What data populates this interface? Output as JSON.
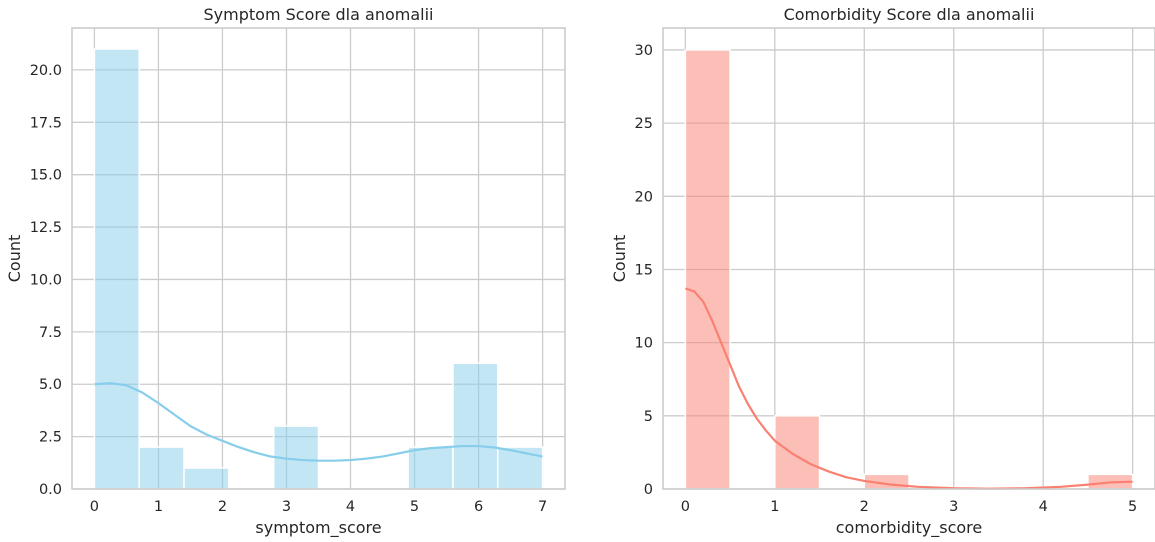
{
  "chart_data": [
    {
      "type": "bar",
      "title": "Symptom Score dla anomalii",
      "xlabel": "symptom_score",
      "ylabel": "Count",
      "xlim": [
        -0.35,
        7.35
      ],
      "ylim": [
        0,
        22
      ],
      "xticks": [
        0,
        1,
        2,
        3,
        4,
        5,
        6,
        7
      ],
      "xtick_labels": [
        "0",
        "1",
        "2",
        "3",
        "4",
        "5",
        "6",
        "7"
      ],
      "yticks": [
        0,
        2.5,
        5,
        7.5,
        10,
        12.5,
        15,
        17.5,
        20
      ],
      "ytick_labels": [
        "0.0",
        "2.5",
        "5.0",
        "7.5",
        "10.0",
        "12.5",
        "15.0",
        "17.5",
        "20.0"
      ],
      "grid": true,
      "bar_color": "#87CEEB",
      "bins": [
        {
          "x0": 0.0,
          "x1": 0.7,
          "count": 21
        },
        {
          "x0": 0.7,
          "x1": 1.4,
          "count": 2
        },
        {
          "x0": 1.4,
          "x1": 2.1,
          "count": 1
        },
        {
          "x0": 2.1,
          "x1": 2.8,
          "count": 0
        },
        {
          "x0": 2.8,
          "x1": 3.5,
          "count": 3
        },
        {
          "x0": 3.5,
          "x1": 4.2,
          "count": 0
        },
        {
          "x0": 4.2,
          "x1": 4.9,
          "count": 0
        },
        {
          "x0": 4.9,
          "x1": 5.6,
          "count": 2
        },
        {
          "x0": 5.6,
          "x1": 6.3,
          "count": 6
        },
        {
          "x0": 6.3,
          "x1": 7.0,
          "count": 2
        }
      ],
      "kde": {
        "color": "#87CEEB",
        "x": [
          0,
          0.25,
          0.5,
          0.75,
          1.0,
          1.25,
          1.5,
          1.75,
          2.0,
          2.25,
          2.5,
          2.75,
          3.0,
          3.25,
          3.5,
          3.75,
          4.0,
          4.25,
          4.5,
          4.75,
          5.0,
          5.25,
          5.5,
          5.75,
          6.0,
          6.25,
          6.5,
          6.75,
          7.0
        ],
        "y": [
          5.0,
          5.05,
          4.95,
          4.6,
          4.1,
          3.55,
          3.0,
          2.6,
          2.3,
          2.0,
          1.75,
          1.55,
          1.45,
          1.38,
          1.35,
          1.35,
          1.38,
          1.45,
          1.55,
          1.7,
          1.85,
          1.95,
          2.0,
          2.05,
          2.05,
          1.98,
          1.85,
          1.7,
          1.55
        ]
      }
    },
    {
      "type": "bar",
      "title": "Comorbidity Score dla anomalii",
      "xlabel": "comorbidity_score",
      "ylabel": "Count",
      "xlim": [
        -0.25,
        5.25
      ],
      "ylim": [
        0,
        31.5
      ],
      "xticks": [
        0,
        1,
        2,
        3,
        4,
        5
      ],
      "xtick_labels": [
        "0",
        "1",
        "2",
        "3",
        "4",
        "5"
      ],
      "yticks": [
        0,
        5,
        10,
        15,
        20,
        25,
        30
      ],
      "ytick_labels": [
        "0",
        "5",
        "10",
        "15",
        "20",
        "25",
        "30"
      ],
      "grid": true,
      "bar_color": "#FA8072",
      "bins": [
        {
          "x0": 0.0,
          "x1": 0.5,
          "count": 30
        },
        {
          "x0": 0.5,
          "x1": 1.0,
          "count": 0
        },
        {
          "x0": 1.0,
          "x1": 1.5,
          "count": 5
        },
        {
          "x0": 1.5,
          "x1": 2.0,
          "count": 0
        },
        {
          "x0": 2.0,
          "x1": 2.5,
          "count": 1
        },
        {
          "x0": 2.5,
          "x1": 3.0,
          "count": 0
        },
        {
          "x0": 3.0,
          "x1": 3.5,
          "count": 0
        },
        {
          "x0": 3.5,
          "x1": 4.0,
          "count": 0
        },
        {
          "x0": 4.0,
          "x1": 4.5,
          "count": 0
        },
        {
          "x0": 4.5,
          "x1": 5.0,
          "count": 1
        }
      ],
      "kde": {
        "color": "#FA8072",
        "x": [
          0,
          0.1,
          0.2,
          0.3,
          0.4,
          0.5,
          0.6,
          0.7,
          0.8,
          0.9,
          1.0,
          1.2,
          1.4,
          1.6,
          1.8,
          2.0,
          2.3,
          2.6,
          3.0,
          3.4,
          3.8,
          4.2,
          4.5,
          4.75,
          5.0
        ],
        "y": [
          13.7,
          13.5,
          12.8,
          11.5,
          10.0,
          8.5,
          7.0,
          5.8,
          4.8,
          4.0,
          3.3,
          2.4,
          1.7,
          1.2,
          0.8,
          0.55,
          0.3,
          0.15,
          0.05,
          0.02,
          0.05,
          0.15,
          0.3,
          0.45,
          0.5
        ]
      }
    }
  ]
}
